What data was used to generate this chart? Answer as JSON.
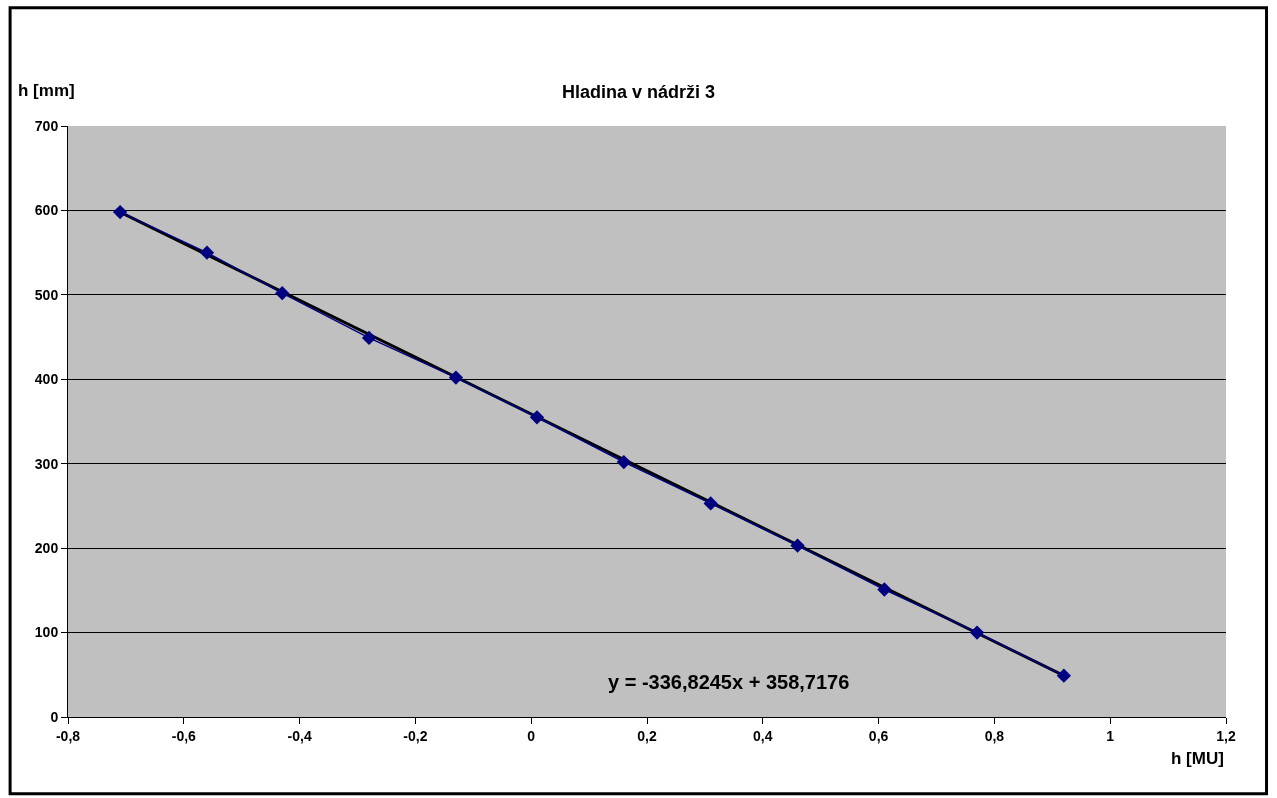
{
  "chart_data": {
    "type": "line",
    "title": "Hladina v nádrži 3",
    "xlabel": "h [MU]",
    "ylabel": "h [mm]",
    "annotations": [
      "y = -336,8245x + 358,7176"
    ],
    "series": [
      {
        "color": "#000080",
        "marker": "diamond",
        "x": [
          -0.71,
          -0.56,
          -0.43,
          -0.28,
          -0.13,
          0.01,
          0.16,
          0.31,
          0.46,
          0.61,
          0.77,
          0.92
        ],
        "values": [
          598,
          550,
          502,
          449,
          402,
          355,
          302,
          253,
          203,
          151,
          100,
          49
        ]
      },
      {
        "type": "line",
        "color": "#000000",
        "marker": "none",
        "x": [
          -0.71,
          0.92
        ],
        "values": [
          598,
          49
        ]
      }
    ],
    "xlim": [
      -0.8,
      1.2
    ],
    "xticks": [
      {
        "value": -0.8,
        "label": "-0,8"
      },
      {
        "value": -0.6,
        "label": "-0,6"
      },
      {
        "value": -0.4,
        "label": "-0,4"
      },
      {
        "value": -0.2,
        "label": "-0,2"
      },
      0,
      {
        "value": 0.2,
        "label": "0,2"
      },
      {
        "value": 0.4,
        "label": "0,4"
      },
      {
        "value": 0.6,
        "label": "0,6"
      },
      {
        "value": 0.8,
        "label": "0,8"
      },
      1,
      {
        "value": 1.2,
        "label": "1,2"
      }
    ],
    "ylim": [
      0,
      700
    ],
    "yticks": [
      0,
      100,
      200,
      300,
      400,
      500,
      600,
      700
    ],
    "grid": "y"
  }
}
